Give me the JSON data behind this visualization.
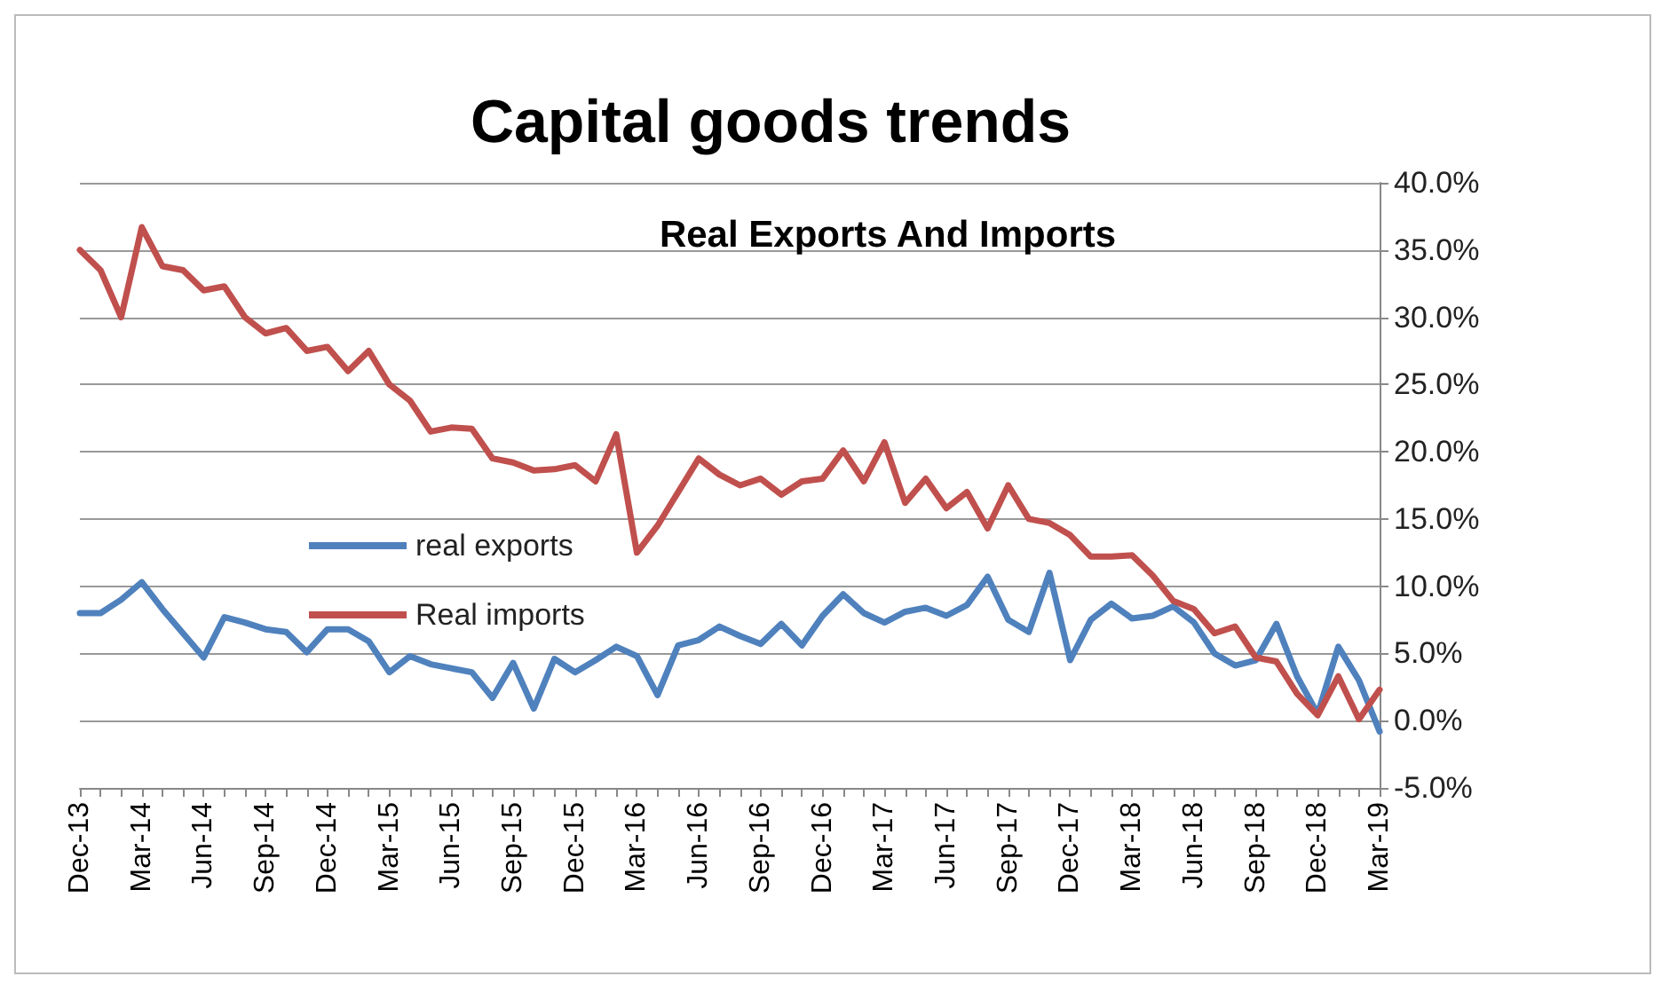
{
  "chart_data": {
    "type": "line",
    "title": "Capital goods trends",
    "subtitle": "Real Exports And Imports",
    "categories": [
      "Dec-13",
      null,
      null,
      "Mar-14",
      null,
      null,
      "Jun-14",
      null,
      null,
      "Sep-14",
      null,
      null,
      "Dec-14",
      null,
      null,
      "Mar-15",
      null,
      null,
      "Jun-15",
      null,
      null,
      "Sep-15",
      null,
      null,
      "Dec-15",
      null,
      null,
      "Mar-16",
      null,
      null,
      "Jun-16",
      null,
      null,
      "Sep-16",
      null,
      null,
      "Dec-16",
      null,
      null,
      "Mar-17",
      null,
      null,
      "Jun-17",
      null,
      null,
      "Sep-17",
      null,
      null,
      "Dec-17",
      null,
      null,
      "Mar-18",
      null,
      null,
      "Jun-18",
      null,
      null,
      "Sep-18",
      null,
      null,
      "Dec-18",
      null,
      null,
      "Mar-19"
    ],
    "series": [
      {
        "name": "real exports",
        "color": "#4f81bd",
        "values": [
          8.0,
          8.0,
          9.0,
          10.3,
          8.3,
          6.5,
          4.7,
          7.7,
          7.3,
          6.8,
          6.6,
          5.1,
          6.8,
          6.8,
          5.9,
          3.6,
          4.8,
          4.2,
          3.9,
          3.6,
          1.7,
          4.3,
          0.9,
          4.6,
          3.6,
          4.5,
          5.5,
          4.8,
          1.9,
          5.6,
          6.0,
          7.0,
          6.3,
          5.7,
          7.2,
          5.6,
          7.8,
          9.4,
          8.0,
          7.3,
          8.1,
          8.4,
          7.8,
          8.6,
          10.7,
          7.5,
          6.6,
          11.0,
          4.5,
          7.5,
          8.7,
          7.6,
          7.8,
          8.5,
          7.3,
          5.0,
          4.1,
          4.5,
          7.2,
          3.3,
          0.5,
          5.5,
          3.0,
          -0.8
        ]
      },
      {
        "name": "Real imports",
        "color": "#c0504d",
        "values": [
          35.0,
          33.5,
          30.0,
          36.7,
          33.8,
          33.5,
          32.0,
          32.3,
          30.0,
          28.8,
          29.2,
          27.5,
          27.8,
          26.0,
          27.5,
          25.0,
          23.8,
          21.5,
          21.8,
          21.7,
          19.5,
          19.2,
          18.6,
          18.7,
          19.0,
          17.8,
          21.3,
          12.5,
          14.5,
          17.0,
          19.5,
          18.3,
          17.5,
          18.0,
          16.8,
          17.8,
          18.0,
          20.1,
          17.8,
          20.7,
          16.2,
          18.0,
          15.8,
          17.0,
          14.3,
          17.5,
          15.0,
          14.7,
          13.8,
          12.2,
          12.2,
          12.3,
          10.8,
          8.9,
          8.3,
          6.5,
          7.0,
          4.7,
          4.4,
          2.0,
          0.4,
          3.3,
          0.1,
          2.3
        ]
      }
    ],
    "ylim": [
      -5,
      40
    ],
    "yticks": [
      {
        "value": -5,
        "label": "-5.0%"
      },
      {
        "value": 0,
        "label": "0.0%"
      },
      {
        "value": 5,
        "label": "5.0%"
      },
      {
        "value": 10,
        "label": "10.0%"
      },
      {
        "value": 15,
        "label": "15.0%"
      },
      {
        "value": 20,
        "label": "20.0%"
      },
      {
        "value": 25,
        "label": "25.0%"
      },
      {
        "value": 30,
        "label": "30.0%"
      },
      {
        "value": 35,
        "label": "35.0%"
      },
      {
        "value": 40,
        "label": "40.0%"
      }
    ],
    "grid": "y",
    "legend": "left",
    "marker": "none",
    "line_style": "solid"
  }
}
